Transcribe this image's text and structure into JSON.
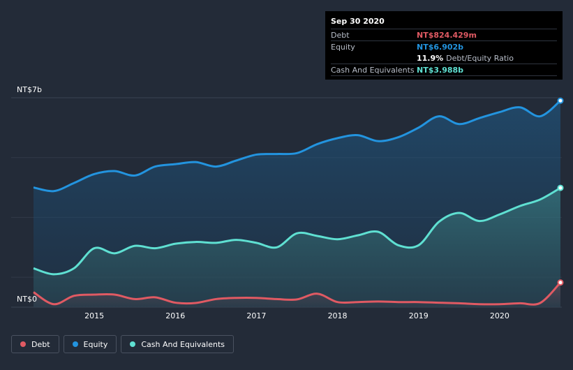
{
  "chart_data": {
    "type": "area",
    "y_unit_labels": {
      "top": "NT$7b",
      "bottom": "NT$0"
    },
    "ylim": [
      0,
      7
    ],
    "xlim": [
      2014.25,
      2020.75
    ],
    "x_ticks": [
      "2015",
      "2016",
      "2017",
      "2018",
      "2019",
      "2020"
    ],
    "grid": true,
    "legend_position": "bottom-left",
    "series": [
      {
        "name": "Debt",
        "color": "#e05a63",
        "x": [
          2014.25,
          2014.5,
          2014.75,
          2015.0,
          2015.25,
          2015.5,
          2015.75,
          2016.0,
          2016.25,
          2016.5,
          2016.75,
          2017.0,
          2017.25,
          2017.5,
          2017.75,
          2018.0,
          2018.25,
          2018.5,
          2018.75,
          2019.0,
          2019.25,
          2019.5,
          2019.75,
          2020.0,
          2020.25,
          2020.5,
          2020.75
        ],
        "values": [
          0.5,
          0.1,
          0.38,
          0.42,
          0.42,
          0.27,
          0.33,
          0.15,
          0.14,
          0.27,
          0.31,
          0.31,
          0.27,
          0.26,
          0.45,
          0.17,
          0.17,
          0.19,
          0.17,
          0.17,
          0.15,
          0.13,
          0.1,
          0.1,
          0.13,
          0.14,
          0.824
        ]
      },
      {
        "name": "Equity",
        "color": "#2394df",
        "x": [
          2014.25,
          2014.5,
          2014.75,
          2015.0,
          2015.25,
          2015.5,
          2015.75,
          2016.0,
          2016.25,
          2016.5,
          2016.75,
          2017.0,
          2017.25,
          2017.5,
          2017.75,
          2018.0,
          2018.25,
          2018.5,
          2018.75,
          2019.0,
          2019.25,
          2019.5,
          2019.75,
          2020.0,
          2020.25,
          2020.5,
          2020.75
        ],
        "values": [
          4.0,
          3.88,
          4.15,
          4.45,
          4.55,
          4.4,
          4.7,
          4.78,
          4.85,
          4.7,
          4.9,
          5.1,
          5.12,
          5.15,
          5.45,
          5.65,
          5.75,
          5.55,
          5.68,
          6.0,
          6.38,
          6.12,
          6.32,
          6.52,
          6.68,
          6.38,
          6.902
        ]
      },
      {
        "name": "Cash And Equivalents",
        "color": "#5fe0d2",
        "x": [
          2014.25,
          2014.5,
          2014.75,
          2015.0,
          2015.25,
          2015.5,
          2015.75,
          2016.0,
          2016.25,
          2016.5,
          2016.75,
          2017.0,
          2017.25,
          2017.5,
          2017.75,
          2018.0,
          2018.25,
          2018.5,
          2018.75,
          2019.0,
          2019.25,
          2019.5,
          2019.75,
          2020.0,
          2020.25,
          2020.5,
          2020.75
        ],
        "values": [
          1.3,
          1.1,
          1.3,
          1.97,
          1.8,
          2.05,
          1.97,
          2.12,
          2.18,
          2.15,
          2.25,
          2.15,
          2.0,
          2.47,
          2.38,
          2.27,
          2.4,
          2.52,
          2.07,
          2.07,
          2.85,
          3.15,
          2.88,
          3.1,
          3.38,
          3.6,
          3.988
        ]
      }
    ]
  },
  "tooltip": {
    "date": "Sep 30 2020",
    "debt_label": "Debt",
    "debt_value": "NT$824.429m",
    "equity_label": "Equity",
    "equity_value": "NT$6.902b",
    "ratio_value": "11.9%",
    "ratio_label": "Debt/Equity Ratio",
    "cash_label": "Cash And Equivalents",
    "cash_value": "NT$3.988b"
  },
  "legend": {
    "debt": "Debt",
    "equity": "Equity",
    "cash": "Cash And Equivalents"
  }
}
